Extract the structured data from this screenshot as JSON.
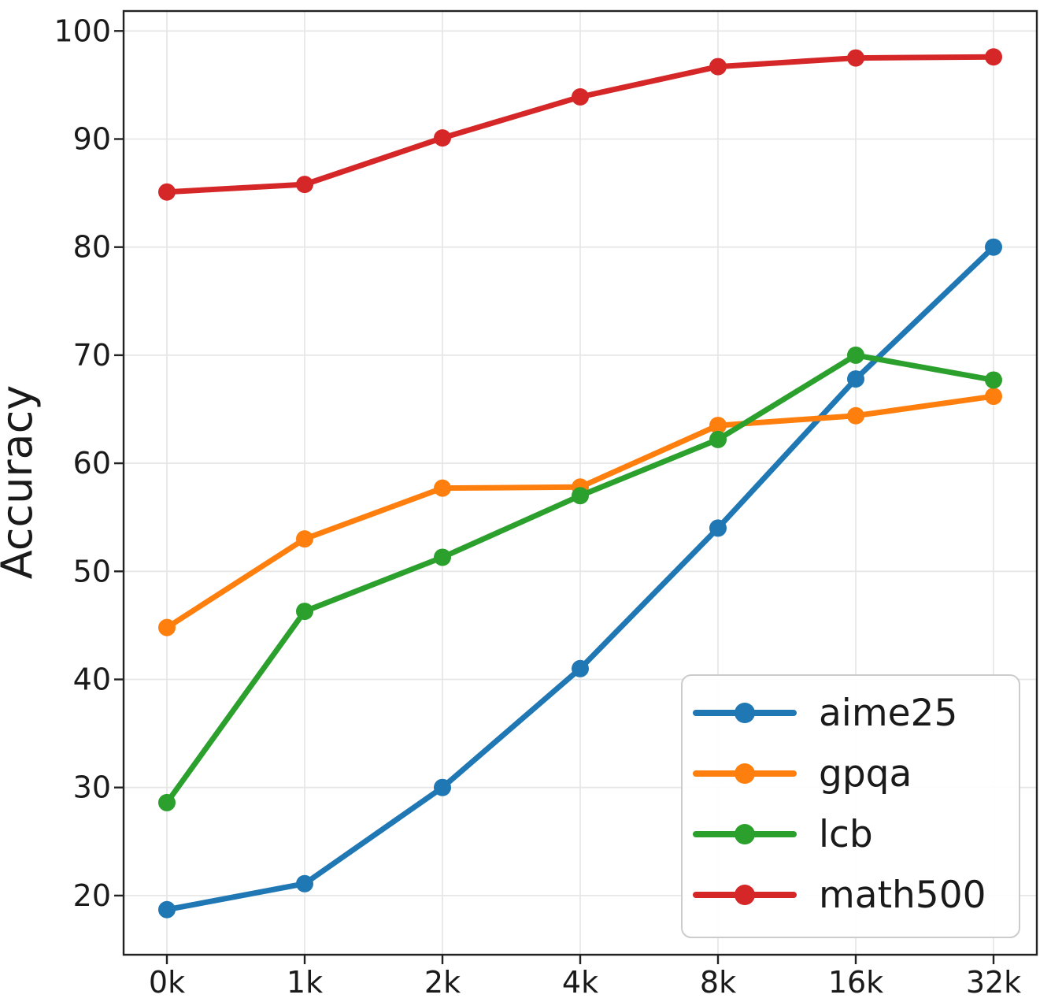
{
  "chart_data": {
    "type": "line",
    "title": "",
    "xlabel": "",
    "ylabel": "Accuracy",
    "categories": [
      "0k",
      "1k",
      "2k",
      "4k",
      "8k",
      "16k",
      "32k"
    ],
    "y_ticks": [
      20,
      30,
      40,
      50,
      60,
      70,
      80,
      90,
      100
    ],
    "ylim": [
      14.5,
      101.8
    ],
    "grid": true,
    "legend_position": "lower right",
    "series": [
      {
        "name": "aime25",
        "color": "#1f77b4",
        "values": [
          18.7,
          21.1,
          30.0,
          41.0,
          54.0,
          67.8,
          80.0
        ]
      },
      {
        "name": "gpqa",
        "color": "#ff7f0e",
        "values": [
          44.8,
          53.0,
          57.7,
          57.8,
          63.5,
          64.4,
          66.2
        ]
      },
      {
        "name": "lcb",
        "color": "#2ca02c",
        "values": [
          28.6,
          46.3,
          51.3,
          57.0,
          62.2,
          70.0,
          67.7
        ]
      },
      {
        "name": "math500",
        "color": "#d62728",
        "values": [
          85.1,
          85.8,
          90.1,
          93.9,
          96.7,
          97.5,
          97.6
        ]
      }
    ]
  },
  "style": {
    "grid_color": "#e7e7e7",
    "spine_color": "#222222",
    "legend_border_color": "#cccccc",
    "legend_fill": "rgba(255,255,255,0.92)",
    "text_color": "#1a1a1a"
  }
}
